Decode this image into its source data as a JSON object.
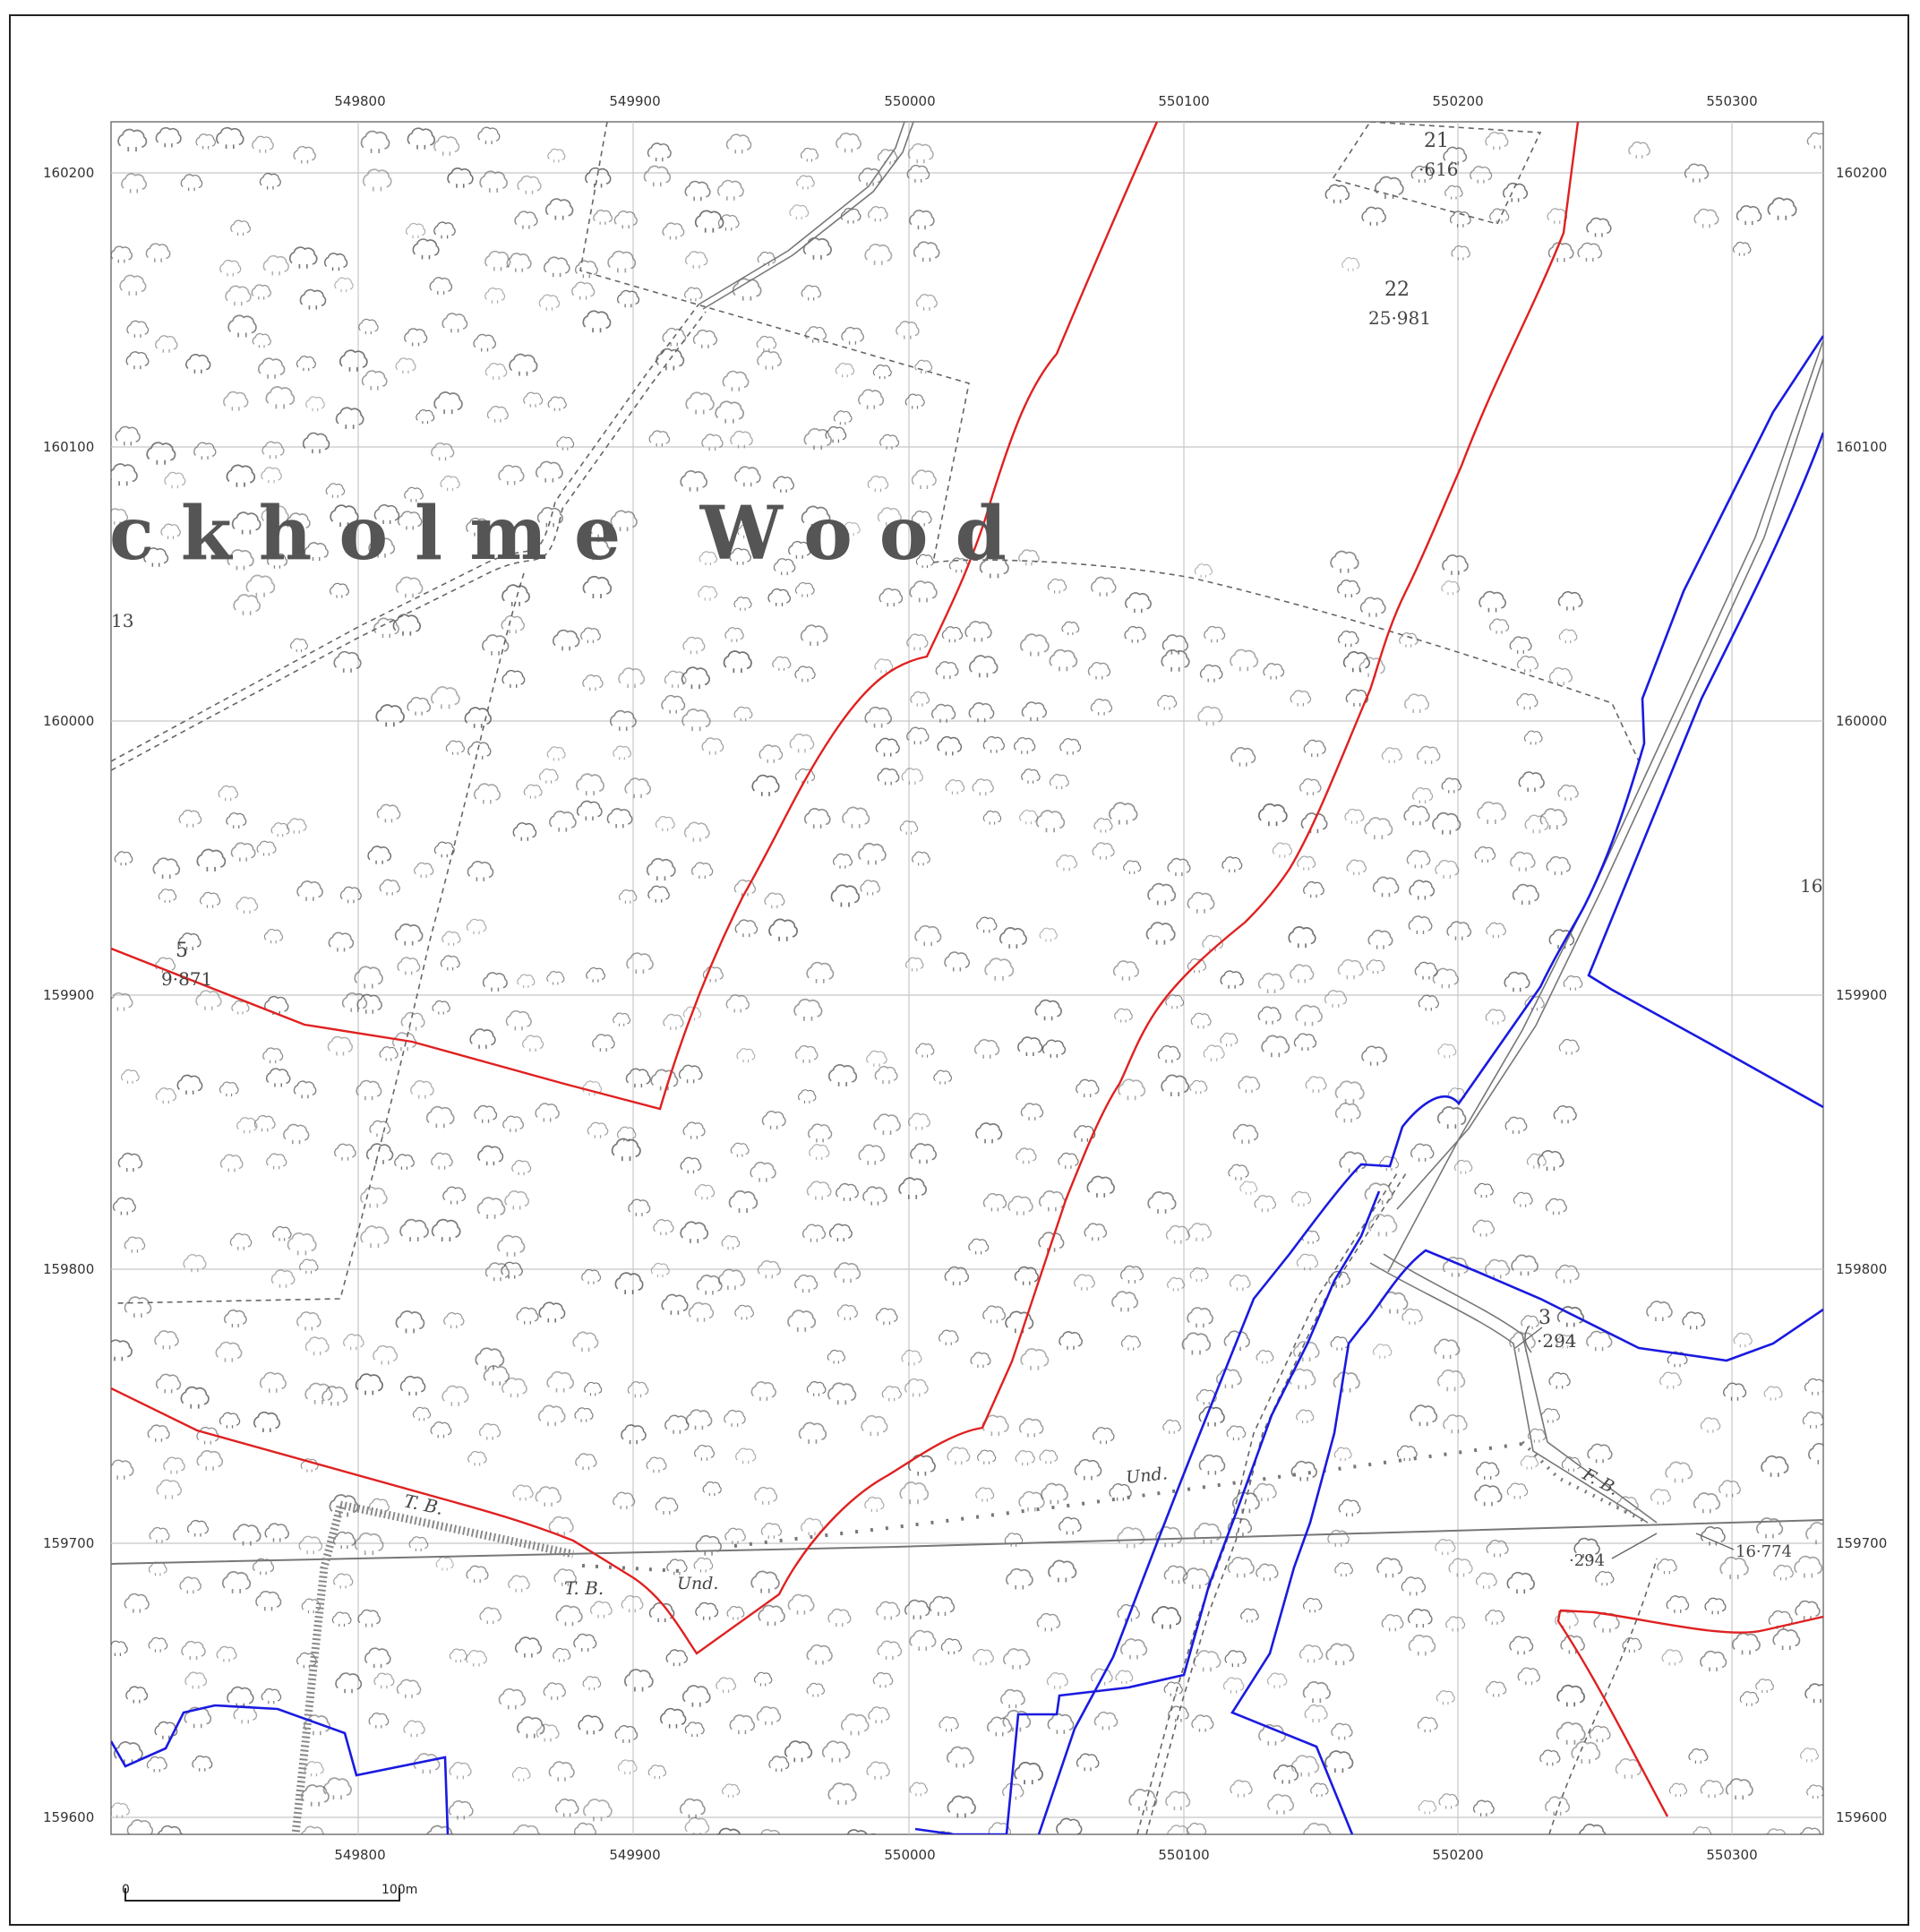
{
  "map": {
    "place_name": "ckholme Wood",
    "x_ticks": [
      "549800",
      "549900",
      "550000",
      "550100",
      "550200",
      "550300"
    ],
    "y_ticks": [
      "160200",
      "160100",
      "160000",
      "159900",
      "159800",
      "159700",
      "159600"
    ],
    "parcels": [
      {
        "number": "21",
        "area": "·616"
      },
      {
        "number": "22",
        "area": "25·981"
      },
      {
        "number": "5",
        "area": "9·871"
      },
      {
        "number": "3",
        "area": "·294"
      }
    ],
    "fragments": {
      "left_edge": "13",
      "right_edge": "16"
    },
    "annotations": {
      "tb_1": "T. B.",
      "tb_2": "T. B.",
      "und_1": "Und.",
      "und_2": "Und.",
      "fb": "F. B.",
      "area_294": "·294",
      "area_16774": "16·774"
    },
    "scale_bar": {
      "start": "0",
      "end": "100m"
    },
    "colors": {
      "red_boundary": "#e02020",
      "blue_boundary": "#1a1ae0",
      "grid": "#c8c8c8",
      "path": "#777777"
    }
  }
}
